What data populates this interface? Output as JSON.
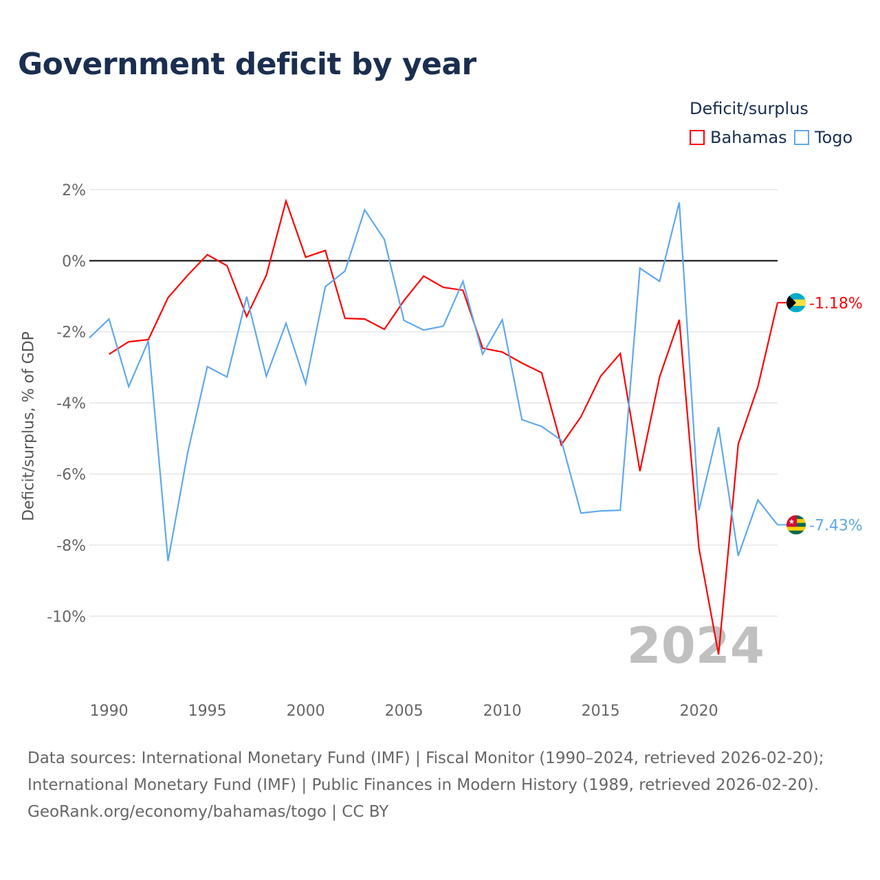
{
  "chart_data": {
    "type": "line",
    "title": "Government deficit by year",
    "ylabel": "Deficit/surplus, % of GDP",
    "xlabel": "",
    "xlim": [
      1989,
      2024
    ],
    "ylim": [
      -12.2,
      2.5
    ],
    "yticks": [
      2,
      0,
      -2,
      -4,
      -6,
      -8,
      -10
    ],
    "ytick_labels": [
      "2%",
      "0%",
      "-2%",
      "-4%",
      "-6%",
      "-8%",
      "-10%"
    ],
    "xticks": [
      1990,
      1995,
      2000,
      2005,
      2010,
      2015,
      2020
    ],
    "xtick_labels": [
      "1990",
      "1995",
      "2000",
      "2005",
      "2010",
      "2015",
      "2020"
    ],
    "grid": true,
    "legend": {
      "title": "Deficit/surplus",
      "placement": "top-right"
    },
    "year_watermark": "2024",
    "series": [
      {
        "name": "Bahamas",
        "color": "#ff0000",
        "end_label": "-1.18%",
        "x": [
          1990,
          1991,
          1992,
          1993,
          1994,
          1995,
          1996,
          1997,
          1998,
          1999,
          2000,
          2001,
          2002,
          2003,
          2004,
          2005,
          2006,
          2007,
          2008,
          2009,
          2010,
          2011,
          2012,
          2013,
          2014,
          2015,
          2016,
          2017,
          2018,
          2019,
          2020,
          2021,
          2022,
          2023,
          2024
        ],
        "values": [
          -2.63,
          -2.28,
          -2.22,
          -1.04,
          -0.41,
          0.17,
          -0.14,
          -1.57,
          -0.41,
          1.68,
          0.1,
          0.29,
          -1.62,
          -1.64,
          -1.93,
          -1.12,
          -0.43,
          -0.75,
          -0.83,
          -2.46,
          -2.57,
          -2.88,
          -3.15,
          -5.18,
          -4.39,
          -3.25,
          -2.61,
          -5.92,
          -3.27,
          -1.66,
          -8.08,
          -11.08,
          -5.16,
          -3.54,
          -1.18
        ]
      },
      {
        "name": "Togo",
        "color": "#5ea8ee",
        "end_label": "-7.43%",
        "x": [
          1989,
          1990,
          1991,
          1992,
          1993,
          1994,
          1995,
          1996,
          1997,
          1998,
          1999,
          2000,
          2001,
          2002,
          2003,
          2004,
          2005,
          2006,
          2007,
          2008,
          2009,
          2010,
          2011,
          2012,
          2013,
          2014,
          2015,
          2016,
          2017,
          2018,
          2019,
          2020,
          2021,
          2022,
          2023,
          2024
        ],
        "values": [
          -2.17,
          -1.64,
          -3.54,
          -2.26,
          -8.45,
          -5.4,
          -2.98,
          -3.27,
          -1.01,
          -3.25,
          -1.76,
          -3.46,
          -0.73,
          -0.29,
          1.43,
          0.6,
          -1.68,
          -1.95,
          -1.84,
          -0.58,
          -2.63,
          -1.66,
          -4.47,
          -4.66,
          -5.05,
          -7.1,
          -7.04,
          -7.02,
          -0.21,
          -0.58,
          1.64,
          -7.02,
          -4.68,
          -8.3,
          -6.73,
          -7.43
        ]
      }
    ]
  },
  "footer": {
    "line1": "Data sources: International Monetary Fund (IMF) | Fiscal Monitor (1990–2024, retrieved 2026-02-20);",
    "line2": "International Monetary Fund (IMF) | Public Finances in Modern History (1989, retrieved 2026-02-20).",
    "line3": "GeoRank.org/economy/bahamas/togo | CC BY"
  }
}
